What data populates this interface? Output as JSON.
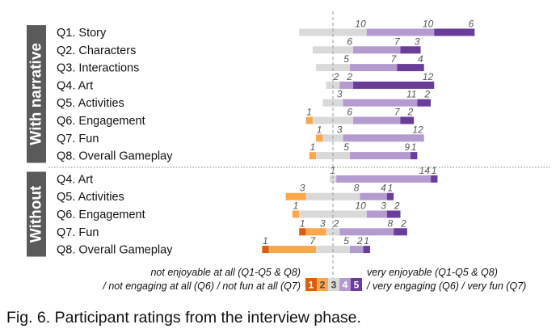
{
  "caption": "Fig. 6. Participant ratings from the interview phase.",
  "chart_data": {
    "type": "bar",
    "subtype": "diverging-stacked-likert",
    "scale": [
      1,
      2,
      3,
      4,
      5
    ],
    "colors": {
      "1": "#d95f0e",
      "2": "#f8a84a",
      "3": "#d9d9d9",
      "4": "#b49bcf",
      "5": "#6a3d9a"
    },
    "groups": [
      {
        "name": "With narrative",
        "rows": [
          {
            "label": "Q1. Story",
            "counts": [
              0,
              0,
              10,
              10,
              6
            ]
          },
          {
            "label": "Q2. Characters",
            "counts": [
              0,
              0,
              6,
              7,
              3
            ]
          },
          {
            "label": "Q3. Interactions",
            "counts": [
              0,
              0,
              5,
              7,
              4
            ]
          },
          {
            "label": "Q4. Art",
            "counts": [
              0,
              0,
              2,
              2,
              12
            ]
          },
          {
            "label": "Q5. Activities",
            "counts": [
              0,
              0,
              3,
              11,
              2
            ]
          },
          {
            "label": "Q6. Engagement",
            "counts": [
              0,
              1,
              6,
              7,
              2
            ]
          },
          {
            "label": "Q7. Fun",
            "counts": [
              0,
              1,
              3,
              12,
              0
            ]
          },
          {
            "label": "Q8. Overall Gameplay",
            "counts": [
              0,
              1,
              5,
              9,
              1
            ]
          }
        ]
      },
      {
        "name": "Without",
        "rows": [
          {
            "label": "Q4. Art",
            "counts": [
              0,
              0,
              1,
              14,
              1
            ]
          },
          {
            "label": "Q5. Activities",
            "counts": [
              0,
              3,
              8,
              4,
              1
            ]
          },
          {
            "label": "Q6. Engagement",
            "counts": [
              0,
              1,
              10,
              3,
              2
            ]
          },
          {
            "label": "Q7. Fun",
            "counts": [
              1,
              3,
              2,
              8,
              2
            ]
          },
          {
            "label": "Q8. Overall Gameplay",
            "counts": [
              1,
              7,
              5,
              2,
              1
            ]
          }
        ]
      }
    ],
    "legend": {
      "left_line1": "not enjoyable at all (Q1-Q5 & Q8)",
      "left_line2": "/ not engaging at all (Q6) / not fun at all (Q7)",
      "right_line1": "very enjoyable (Q1-Q5 & Q8)",
      "right_line2": "/ very engaging (Q6) / very fun (Q7)",
      "swatches": [
        "1",
        "2",
        "3",
        "4",
        "5"
      ]
    }
  }
}
